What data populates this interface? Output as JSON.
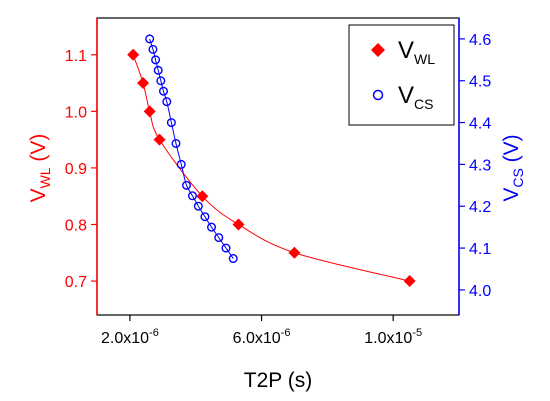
{
  "chart_data": {
    "type": "scatter",
    "xlabel": "T2P (s)",
    "xlim": [
      1e-06,
      1.2e-05
    ],
    "x_ticks": [
      {
        "value": 2e-06,
        "base": "2.0x10",
        "exp": "-6"
      },
      {
        "value": 6e-06,
        "base": "6.0x10",
        "exp": "-6"
      },
      {
        "value": 1e-05,
        "base": "1.0x10",
        "exp": "-5"
      }
    ],
    "left_axis": {
      "label_main": "V",
      "label_sub": "WL",
      "label_unit": " (V)",
      "ylim": [
        0.64,
        1.165
      ],
      "ticks": [
        "0.7",
        "0.8",
        "0.9",
        "1.0",
        "1.1"
      ],
      "color": "#ff0000"
    },
    "right_axis": {
      "label_main": "V",
      "label_sub": "CS",
      "label_unit": " (V)",
      "ylim": [
        3.94,
        4.65
      ],
      "ticks": [
        "4.0",
        "4.1",
        "4.2",
        "4.3",
        "4.4",
        "4.5",
        "4.6"
      ],
      "color": "#0000ff"
    },
    "series": [
      {
        "name_main": "V",
        "name_sub": "WL",
        "axis": "left",
        "marker": "diamond",
        "color": "#ff0000",
        "x": [
          2.1e-06,
          2.4e-06,
          2.6e-06,
          2.9e-06,
          4.2e-06,
          5.3e-06,
          7e-06,
          1.05e-05
        ],
        "y": [
          1.1,
          1.05,
          1.0,
          0.95,
          0.85,
          0.8,
          0.75,
          0.7
        ]
      },
      {
        "name_main": "V",
        "name_sub": "CS",
        "axis": "right",
        "marker": "circle",
        "color": "#0000ff",
        "x": [
          2.6e-06,
          2.7e-06,
          2.78e-06,
          2.86e-06,
          2.94e-06,
          3.02e-06,
          3.12e-06,
          3.26e-06,
          3.4e-06,
          3.56e-06,
          3.72e-06,
          3.9e-06,
          4.08e-06,
          4.28e-06,
          4.48e-06,
          4.7e-06,
          4.92e-06,
          5.14e-06
        ],
        "y": [
          4.6,
          4.575,
          4.55,
          4.525,
          4.5,
          4.475,
          4.45,
          4.4,
          4.35,
          4.3,
          4.25,
          4.225,
          4.2,
          4.175,
          4.15,
          4.125,
          4.1,
          4.075
        ]
      }
    ],
    "legend": {
      "position": "top-right"
    },
    "grid": false
  }
}
